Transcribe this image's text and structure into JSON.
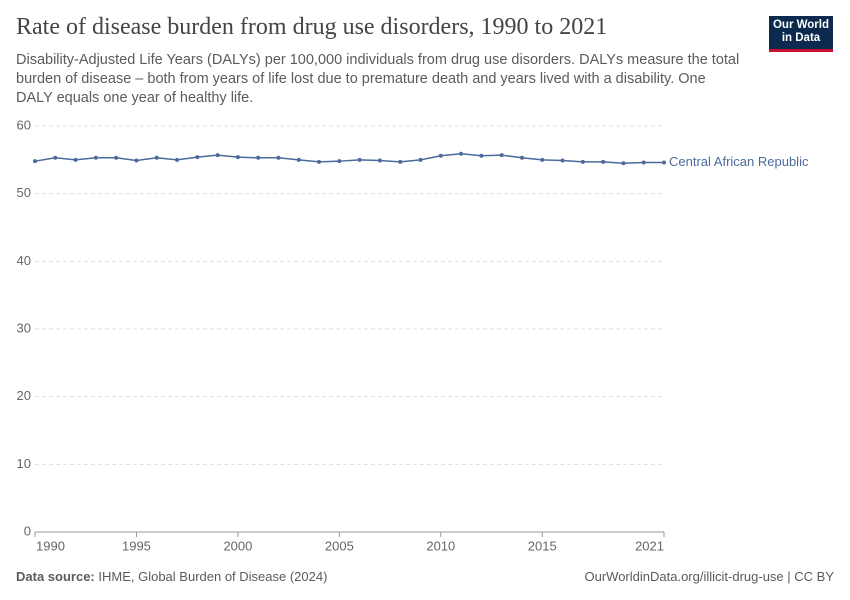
{
  "chart_data": {
    "type": "line",
    "title": "Rate of disease burden from drug use disorders, 1990 to 2021",
    "subtitle": "Disability-Adjusted Life Years (DALYs) per 100,000 individuals from drug use disorders. DALYs measure the total burden of disease – both from years of life lost due to premature death and years lived with a disability. One DALY equals one year of healthy life.",
    "logo": [
      "Our World",
      "in Data"
    ],
    "source_label": "Data source:",
    "source": "IHME, Global Burden of Disease (2024)",
    "url_license": "OurWorldinData.org/illicit-drug-use | CC BY",
    "x": [
      1990,
      1991,
      1992,
      1993,
      1994,
      1995,
      1996,
      1997,
      1998,
      1999,
      2000,
      2001,
      2002,
      2003,
      2004,
      2005,
      2006,
      2007,
      2008,
      2009,
      2010,
      2011,
      2012,
      2013,
      2014,
      2015,
      2016,
      2017,
      2018,
      2019,
      2020,
      2021
    ],
    "series": [
      {
        "name": "Central African Republic",
        "color": "#4c6a9c",
        "values": [
          54.8,
          55.3,
          55.0,
          55.3,
          55.3,
          54.9,
          55.3,
          55.0,
          55.4,
          55.7,
          55.4,
          55.3,
          55.3,
          55.0,
          54.7,
          54.8,
          55.0,
          54.9,
          54.7,
          55.0,
          55.6,
          55.9,
          55.6,
          55.7,
          55.3,
          55.0,
          54.9,
          54.7,
          54.7,
          54.5,
          54.6,
          54.6
        ]
      }
    ],
    "xlim": [
      1990,
      2021
    ],
    "xticks": [
      1990,
      1995,
      2000,
      2005,
      2010,
      2015,
      2021
    ],
    "ylim": [
      0,
      60
    ],
    "yticks": [
      0,
      10,
      20,
      30,
      40,
      50,
      60
    ],
    "grid": true
  }
}
